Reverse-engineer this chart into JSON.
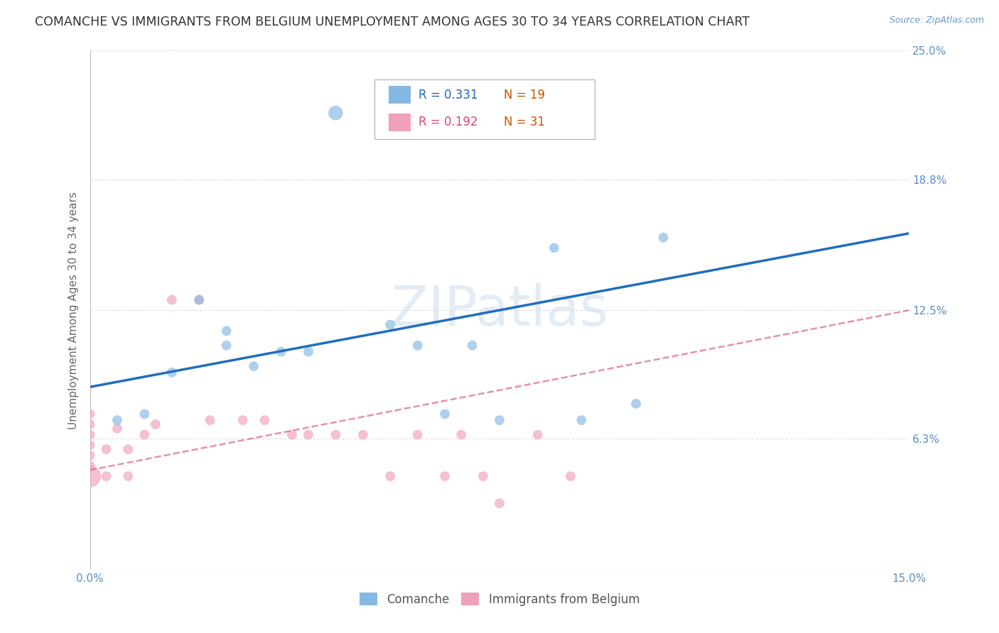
{
  "title": "COMANCHE VS IMMIGRANTS FROM BELGIUM UNEMPLOYMENT AMONG AGES 30 TO 34 YEARS CORRELATION CHART",
  "source": "Source: ZipAtlas.com",
  "ylabel": "Unemployment Among Ages 30 to 34 years",
  "xlim": [
    0.0,
    0.15
  ],
  "ylim": [
    0.0,
    0.25
  ],
  "yticks": [
    0.0,
    0.063,
    0.125,
    0.188,
    0.25
  ],
  "ytick_labels_right": [
    "",
    "6.3%",
    "12.5%",
    "18.8%",
    "25.0%"
  ],
  "xticks": [
    0.0,
    0.05,
    0.1,
    0.15
  ],
  "xtick_labels": [
    "0.0%",
    "",
    "",
    "15.0%"
  ],
  "legend_r1": "R = 0.331",
  "legend_n1": "N = 19",
  "legend_r2": "R = 0.192",
  "legend_n2": "N = 31",
  "legend_label1": "Comanche",
  "legend_label2": "Immigrants from Belgium",
  "comanche_x": [
    0.005,
    0.01,
    0.015,
    0.02,
    0.025,
    0.025,
    0.03,
    0.035,
    0.04,
    0.045,
    0.055,
    0.06,
    0.065,
    0.07,
    0.075,
    0.085,
    0.09,
    0.1,
    0.105
  ],
  "comanche_y": [
    0.072,
    0.075,
    0.095,
    0.13,
    0.108,
    0.115,
    0.098,
    0.105,
    0.105,
    0.22,
    0.118,
    0.108,
    0.075,
    0.108,
    0.072,
    0.155,
    0.072,
    0.08,
    0.16
  ],
  "comanche_sizes": [
    100,
    100,
    100,
    100,
    100,
    100,
    100,
    100,
    100,
    220,
    100,
    100,
    100,
    100,
    100,
    100,
    100,
    100,
    100
  ],
  "belgium_x": [
    0.0,
    0.0,
    0.0,
    0.0,
    0.0,
    0.0,
    0.0,
    0.003,
    0.003,
    0.005,
    0.007,
    0.007,
    0.01,
    0.012,
    0.015,
    0.02,
    0.022,
    0.028,
    0.032,
    0.037,
    0.04,
    0.045,
    0.05,
    0.055,
    0.06,
    0.065,
    0.068,
    0.072,
    0.075,
    0.082,
    0.088
  ],
  "belgium_y": [
    0.045,
    0.05,
    0.055,
    0.06,
    0.065,
    0.07,
    0.075,
    0.045,
    0.058,
    0.068,
    0.045,
    0.058,
    0.065,
    0.07,
    0.13,
    0.13,
    0.072,
    0.072,
    0.072,
    0.065,
    0.065,
    0.065,
    0.065,
    0.045,
    0.065,
    0.045,
    0.065,
    0.045,
    0.032,
    0.065,
    0.045
  ],
  "belgium_sizes": [
    500,
    100,
    100,
    100,
    100,
    100,
    100,
    100,
    100,
    100,
    100,
    100,
    100,
    100,
    100,
    100,
    100,
    100,
    100,
    100,
    100,
    100,
    100,
    100,
    100,
    100,
    100,
    100,
    100,
    100,
    100
  ],
  "comanche_color": "#85b8e3",
  "belgium_color": "#f0a0bb",
  "trend_comanche_color": "#1f6dbf",
  "trend_belgium_color": "#e06080",
  "trend_comanche_x0": 0.0,
  "trend_comanche_y0": 0.088,
  "trend_comanche_x1": 0.15,
  "trend_comanche_y1": 0.162,
  "trend_belgium_x0": 0.0,
  "trend_belgium_y0": 0.048,
  "trend_belgium_x1": 0.15,
  "trend_belgium_y1": 0.125,
  "background_color": "#ffffff",
  "watermark": "ZIPatlas",
  "title_fontsize": 12.5,
  "axis_label_fontsize": 11,
  "tick_label_fontsize": 11,
  "legend_fontsize": 12,
  "source_fontsize": 9
}
